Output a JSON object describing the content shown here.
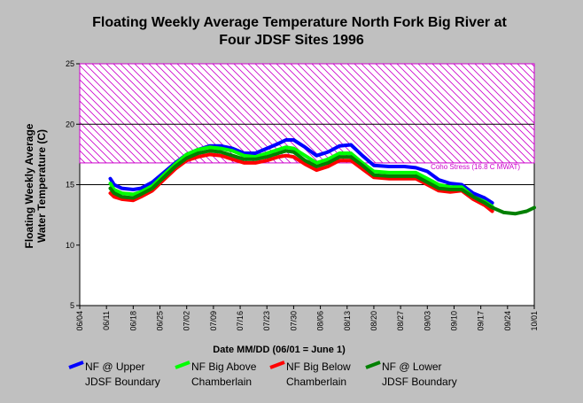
{
  "chart_data": {
    "type": "line",
    "title_lines": [
      "Floating Weekly Average Temperature North Fork Big River at",
      "Four JDSF Sites 1996"
    ],
    "ylabel_lines": [
      "Floating Weekly Average",
      "Water Temperature (C)"
    ],
    "xlabel": "Date MM/DD (06/01 = June 1)",
    "ylim": [
      5,
      25
    ],
    "yticks": [
      5,
      10,
      15,
      20,
      25
    ],
    "xlim": [
      "06/04",
      "10/01"
    ],
    "xticks": [
      "06/04",
      "06/11",
      "06/18",
      "06/25",
      "07/02",
      "07/09",
      "07/16",
      "07/23",
      "07/30",
      "08/06",
      "08/13",
      "08/20",
      "08/27",
      "09/03",
      "09/10",
      "09/17",
      "09/24",
      "10/01"
    ],
    "grid_y": [
      15,
      20
    ],
    "threshold_band": {
      "from": 16.8,
      "to": 25,
      "label": "Coho Stress (16.8 C MWAT)",
      "color": "#cc00cc"
    },
    "colors": {
      "background": "#c0c0c0",
      "plot_bg": "#ffffff"
    },
    "series": [
      {
        "name": "NF @ Upper JDSF Boundary",
        "legend_lines": [
          "NF @ Upper",
          "JDSF Boundary"
        ],
        "color": "#0000ff",
        "x": [
          "06/12",
          "06/13",
          "06/15",
          "06/18",
          "06/20",
          "06/23",
          "06/26",
          "06/29",
          "07/02",
          "07/05",
          "07/08",
          "07/11",
          "07/14",
          "07/17",
          "07/20",
          "07/23",
          "07/26",
          "07/28",
          "07/30",
          "08/02",
          "08/05",
          "08/08",
          "08/11",
          "08/14",
          "08/17",
          "08/20",
          "08/24",
          "08/28",
          "08/31",
          "09/03",
          "09/06",
          "09/09",
          "09/12",
          "09/15",
          "09/18",
          "09/20"
        ],
        "values": [
          15.5,
          15.0,
          14.7,
          14.6,
          14.7,
          15.2,
          16.0,
          16.8,
          17.5,
          17.9,
          18.2,
          18.2,
          18.0,
          17.6,
          17.6,
          18.0,
          18.4,
          18.7,
          18.7,
          18.1,
          17.4,
          17.7,
          18.2,
          18.3,
          17.4,
          16.6,
          16.5,
          16.5,
          16.4,
          16.1,
          15.4,
          15.1,
          15.0,
          14.3,
          13.9,
          13.5
        ]
      },
      {
        "name": "NF Big Above Chamberlain",
        "legend_lines": [
          "NF Big Above",
          "Chamberlain"
        ],
        "color": "#00ff00",
        "x": [
          "06/12",
          "06/13",
          "06/15",
          "06/18",
          "06/20",
          "06/23",
          "06/26",
          "06/29",
          "07/02",
          "07/05",
          "07/08",
          "07/11",
          "07/14",
          "07/17",
          "07/20",
          "07/23",
          "07/26",
          "07/28",
          "07/30",
          "08/02",
          "08/05",
          "08/08",
          "08/11",
          "08/14",
          "08/17",
          "08/20",
          "08/24",
          "08/28",
          "08/31",
          "09/03",
          "09/06",
          "09/09",
          "09/12",
          "09/15",
          "09/18",
          "09/20"
        ],
        "values": [
          15.1,
          14.6,
          14.3,
          14.2,
          14.4,
          14.9,
          15.8,
          16.7,
          17.5,
          17.9,
          18.1,
          18.0,
          17.8,
          17.4,
          17.3,
          17.6,
          17.9,
          18.1,
          18.0,
          17.4,
          16.8,
          17.1,
          17.6,
          17.6,
          16.8,
          16.1,
          16.0,
          16.0,
          16.0,
          15.5,
          15.0,
          14.8,
          14.8,
          14.0,
          13.6,
          13.2
        ]
      },
      {
        "name": "NF Big Below Chamberlain",
        "legend_lines": [
          "NF Big Below",
          "Chamberlain"
        ],
        "color": "#ff0000",
        "x": [
          "06/12",
          "06/13",
          "06/15",
          "06/18",
          "06/20",
          "06/23",
          "06/26",
          "06/29",
          "07/02",
          "07/05",
          "07/08",
          "07/11",
          "07/14",
          "07/17",
          "07/20",
          "07/23",
          "07/26",
          "07/28",
          "07/30",
          "08/02",
          "08/05",
          "08/08",
          "08/11",
          "08/14",
          "08/17",
          "08/20",
          "08/24",
          "08/28",
          "08/31",
          "09/03",
          "09/06",
          "09/09",
          "09/12",
          "09/15",
          "09/18",
          "09/20"
        ],
        "values": [
          14.3,
          14.0,
          13.8,
          13.7,
          14.0,
          14.5,
          15.4,
          16.3,
          17.0,
          17.3,
          17.5,
          17.4,
          17.1,
          16.8,
          16.8,
          17.0,
          17.3,
          17.4,
          17.3,
          16.7,
          16.2,
          16.5,
          17.0,
          17.0,
          16.3,
          15.6,
          15.5,
          15.5,
          15.5,
          15.0,
          14.5,
          14.4,
          14.5,
          13.8,
          13.3,
          12.8
        ]
      },
      {
        "name": "NF @ Lower JDSF Boundary",
        "legend_lines": [
          "NF @ Lower",
          "JDSF Boundary"
        ],
        "color": "#008000",
        "x": [
          "06/12",
          "06/13",
          "06/15",
          "06/18",
          "06/20",
          "06/23",
          "06/26",
          "06/29",
          "07/02",
          "07/05",
          "07/08",
          "07/11",
          "07/14",
          "07/17",
          "07/20",
          "07/23",
          "07/26",
          "07/28",
          "07/30",
          "08/02",
          "08/05",
          "08/08",
          "08/11",
          "08/14",
          "08/17",
          "08/20",
          "08/24",
          "08/28",
          "08/31",
          "09/03",
          "09/06",
          "09/09",
          "09/12",
          "09/15",
          "09/18",
          "09/20",
          "09/23",
          "09/26",
          "09/29",
          "10/01"
        ],
        "values": [
          14.7,
          14.3,
          14.0,
          13.9,
          14.2,
          14.7,
          15.6,
          16.5,
          17.2,
          17.6,
          17.8,
          17.7,
          17.4,
          17.1,
          17.1,
          17.3,
          17.6,
          17.8,
          17.7,
          17.0,
          16.5,
          16.8,
          17.3,
          17.3,
          16.6,
          15.8,
          15.7,
          15.7,
          15.7,
          15.2,
          14.7,
          14.6,
          14.6,
          14.0,
          13.5,
          13.1,
          12.7,
          12.6,
          12.8,
          13.1
        ]
      }
    ]
  }
}
